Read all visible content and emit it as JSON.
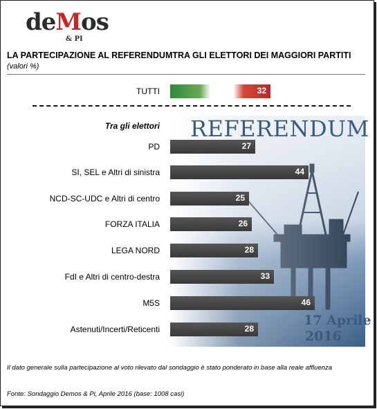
{
  "logo": {
    "main_a": "de",
    "main_m": "M",
    "main_b": "os",
    "sub": "& PI"
  },
  "header": {
    "title": "LA PARTECIPAZIONE  AL REFERENDUMTRA GLI ELETTORI DEI MAGGIORI PARTITI",
    "subtitle": "(valori %)"
  },
  "background": {
    "headline": "REFERENDUM",
    "date_line1": "17  Aprile",
    "date_line2": "2016"
  },
  "colors": {
    "bar_dark": "#3f3f3f",
    "flag_green": "#2f8a3a",
    "flag_white": "#ffffff",
    "flag_red": "#b8282b",
    "accent_text": "#3a5a82",
    "logo_red": "#c0282b"
  },
  "chart_data": {
    "type": "bar",
    "orientation": "horizontal",
    "total": {
      "category": "TUTTI",
      "value": 32
    },
    "section_label": "Tra gli elettori",
    "categories": [
      "PD",
      "SI, SEL e Altri di sinistra",
      "NCD-SC-UDC e Altri di centro",
      "FORZA ITALIA",
      "LEGA NORD",
      "FdI e Altri di centro-destra",
      "M5S",
      "Astenuti/Incerti/Reticenti"
    ],
    "values": [
      27,
      44,
      25,
      26,
      28,
      33,
      46,
      28
    ],
    "xlim": [
      0,
      60
    ],
    "unit": "%"
  },
  "footer": {
    "note": "Il dato generale sulla partecipazione al voto rilevato dal sondaggio è stato ponderato in base alla reale affluenza",
    "source": "Fonte: Sondaggio Demos & Pi, Aprile 2016 (base: 1008 casi)"
  }
}
